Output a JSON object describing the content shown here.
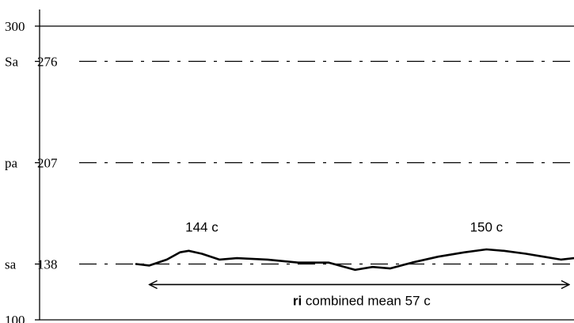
{
  "chart_data": {
    "type": "line",
    "title": "",
    "xlabel": "",
    "ylabel": "",
    "ylim": [
      100,
      300
    ],
    "y_ticks": [
      {
        "value": 300,
        "label": "300"
      },
      {
        "value": 276,
        "label": "276",
        "name": "Sa"
      },
      {
        "value": 207,
        "label": "207",
        "name": "pa"
      },
      {
        "value": 138,
        "label": "138",
        "name": "sa"
      },
      {
        "value": 100,
        "label": "100"
      }
    ],
    "reference_lines": [
      276,
      207,
      138
    ],
    "series": [
      {
        "x": [
          0,
          0.03,
          0.07,
          0.1,
          0.12,
          0.15,
          0.19,
          0.23,
          0.3,
          0.37,
          0.44,
          0.5,
          0.54,
          0.58,
          0.63,
          0.69,
          0.75,
          0.8,
          0.84,
          0.89,
          0.93,
          0.97,
          1
        ],
        "values": [
          138,
          137,
          141,
          146,
          147,
          145,
          141,
          142,
          141,
          139,
          139,
          134,
          136,
          135,
          139,
          143,
          146,
          148,
          147,
          145,
          143,
          141,
          142
        ]
      }
    ],
    "annotations": [
      {
        "text": "144 c",
        "x": 0.15,
        "y": 160
      },
      {
        "text": "150 c",
        "x": 0.8,
        "y": 160
      }
    ],
    "span_arrow": {
      "x_start": 0.03,
      "x_end": 1,
      "y": 124,
      "label_bold": "ri",
      "label": "combined mean 57 c"
    }
  }
}
